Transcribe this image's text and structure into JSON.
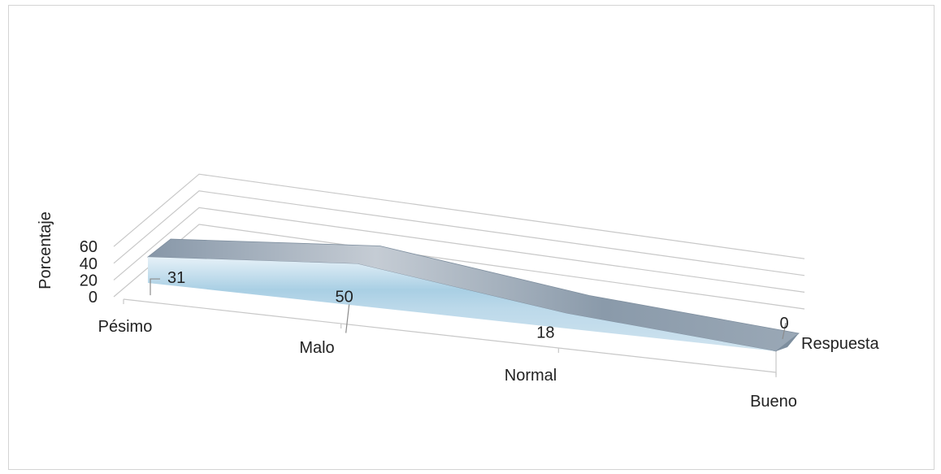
{
  "chart_data": {
    "type": "area",
    "subtype": "3d-area",
    "categories": [
      "Pésimo",
      "Malo",
      "Normal",
      "Bueno"
    ],
    "series": [
      {
        "name": "Respuesta",
        "values": [
          31,
          50,
          18,
          0
        ]
      }
    ],
    "ylabel": "Porcentaje",
    "xlabel": "",
    "ylim": [
      0,
      60
    ],
    "yticks": [
      0,
      20,
      40,
      60
    ],
    "data_labels": [
      "31",
      "50",
      "18",
      "0"
    ],
    "grid": true,
    "legend": "none",
    "colors": {
      "front_top": "#a8cde3",
      "front_bottom": "#cfe3ef",
      "top_surface": "#8ea2b4",
      "right_face": "#7d8e9e",
      "grid": "#c8c8c8"
    }
  }
}
